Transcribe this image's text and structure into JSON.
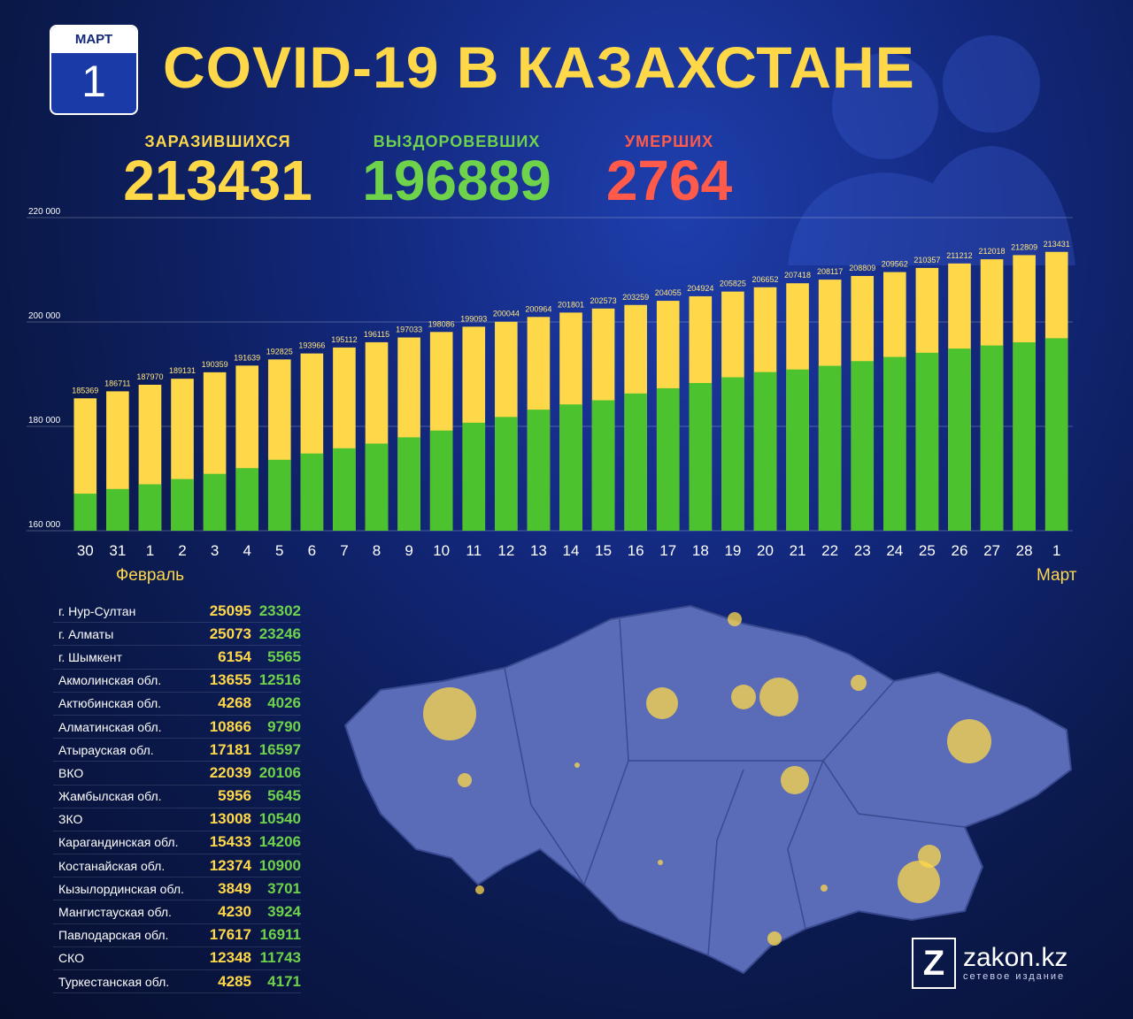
{
  "calendar": {
    "month": "МАРТ",
    "day": "1"
  },
  "title": "COVID-19 В КАЗАХСТАНЕ",
  "totals": {
    "infected_label": "ЗАРАЗИВШИХСЯ",
    "infected_value": "213431",
    "recovered_label": "ВЫЗДОРОВЕВШИХ",
    "recovered_value": "196889",
    "deaths_label": "УМЕРШИХ",
    "deaths_value": "2764"
  },
  "colors": {
    "infected": "#ffd84a",
    "recovered": "#4cc22f",
    "deaths": "#ff5a4a",
    "background": "#12277a"
  },
  "chart_data": {
    "type": "bar",
    "stacked_overlay": true,
    "categories": [
      "30",
      "31",
      "1",
      "2",
      "3",
      "4",
      "5",
      "6",
      "7",
      "8",
      "9",
      "10",
      "11",
      "12",
      "13",
      "14",
      "15",
      "16",
      "17",
      "18",
      "19",
      "20",
      "21",
      "22",
      "23",
      "24",
      "25",
      "26",
      "27",
      "28",
      "1"
    ],
    "series": [
      {
        "name": "",
        "color": "#ffd84a",
        "values": [
          185369,
          186711,
          187970,
          189131,
          190359,
          191639,
          192825,
          193966,
          195112,
          196115,
          197033,
          198086,
          199093,
          200044,
          200964,
          201801,
          202573,
          203259,
          204055,
          204924,
          205825,
          206652,
          207418,
          208117,
          208809,
          209562,
          210357,
          211212,
          212018,
          212809,
          213431
        ]
      },
      {
        "name": "",
        "color": "#4cc22f",
        "values": [
          167100,
          168000,
          168900,
          169900,
          170900,
          172000,
          173600,
          174800,
          175800,
          176700,
          177900,
          179200,
          180700,
          181800,
          183200,
          184200,
          185000,
          186300,
          187300,
          188300,
          189400,
          190400,
          190900,
          191600,
          192500,
          193300,
          194100,
          194900,
          195500,
          196100,
          196889
        ]
      }
    ],
    "data_labels": [
      "185369",
      "186711",
      "187970",
      "189131",
      "190359",
      "191639",
      "192825",
      "193966",
      "195112",
      "196115",
      "197033",
      "198086",
      "199093",
      "200044",
      "200964",
      "201801",
      "202573",
      "203259",
      "204055",
      "204924",
      "205825",
      "206652",
      "207418",
      "208117",
      "208809",
      "209562",
      "210357",
      "211212",
      "212018",
      "212809",
      "213431"
    ],
    "yticks": [
      "160 000",
      "180 000",
      "200 000",
      "220 000"
    ],
    "ylim": [
      160000,
      220000
    ],
    "month_labels": {
      "left": "Февраль",
      "right": "Март"
    },
    "grid": true
  },
  "regions": [
    {
      "name": "г. Нур-Султан",
      "infected": "25095",
      "recovered": "23302"
    },
    {
      "name": "г. Алматы",
      "infected": "25073",
      "recovered": "23246"
    },
    {
      "name": "г. Шымкент",
      "infected": "6154",
      "recovered": "5565"
    },
    {
      "name": "Акмолинская обл.",
      "infected": "13655",
      "recovered": "12516"
    },
    {
      "name": "Актюбинская обл.",
      "infected": "4268",
      "recovered": "4026"
    },
    {
      "name": "Алматинская обл.",
      "infected": "10866",
      "recovered": "9790"
    },
    {
      "name": "Атырауская обл.",
      "infected": "17181",
      "recovered": "16597"
    },
    {
      "name": "ВКО",
      "infected": "22039",
      "recovered": "20106"
    },
    {
      "name": "Жамбылская обл.",
      "infected": "5956",
      "recovered": "5645"
    },
    {
      "name": "ЗКО",
      "infected": "13008",
      "recovered": "10540"
    },
    {
      "name": "Карагандинская обл.",
      "infected": "15433",
      "recovered": "14206"
    },
    {
      "name": "Костанайская обл.",
      "infected": "12374",
      "recovered": "10900"
    },
    {
      "name": "Кызылординская обл.",
      "infected": "3849",
      "recovered": "3701"
    },
    {
      "name": "Мангистауская обл.",
      "infected": "4230",
      "recovered": "3924"
    },
    {
      "name": "Павлодарская обл.",
      "infected": "17617",
      "recovered": "16911"
    },
    {
      "name": "СКО",
      "infected": "12348",
      "recovered": "11743"
    },
    {
      "name": "Туркестанская обл.",
      "infected": "4285",
      "recovered": "4171"
    }
  ],
  "logo": {
    "mark": "Z",
    "name": "zakon.kz",
    "subtitle": "сетевое издание"
  }
}
